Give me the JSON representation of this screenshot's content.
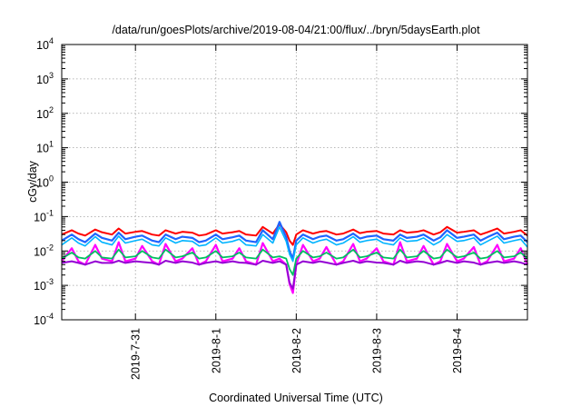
{
  "chart_data": {
    "type": "line",
    "title": "/data/run/goesPlots/archive/2019-08-04/21:00/flux/../bryn/5daysEarth.plot",
    "xlabel": "Coordinated Universal Time (UTC)",
    "ylabel": "cGy/day",
    "yscale": "log",
    "ylim": [
      0.0001,
      10000
    ],
    "xlim": [
      "2019-07-30T02:00",
      "2019-08-04T21:00"
    ],
    "y_ticks": [
      {
        "value": 0.0001,
        "base": "10",
        "exp": "-4"
      },
      {
        "value": 0.001,
        "base": "10",
        "exp": "-3"
      },
      {
        "value": 0.01,
        "base": "10",
        "exp": "-2"
      },
      {
        "value": 0.1,
        "base": "10",
        "exp": "-1"
      },
      {
        "value": 1,
        "base": "10",
        "exp": "0"
      },
      {
        "value": 10,
        "base": "10",
        "exp": "1"
      },
      {
        "value": 100,
        "base": "10",
        "exp": "2"
      },
      {
        "value": 1000,
        "base": "10",
        "exp": "3"
      },
      {
        "value": 10000,
        "base": "10",
        "exp": "4"
      }
    ],
    "x_ticks": [
      {
        "value": "2019-07-31T00:00",
        "label": "2019-7-31"
      },
      {
        "value": "2019-08-01T00:00",
        "label": "2019-8-1"
      },
      {
        "value": "2019-08-02T00:00",
        "label": "2019-8-2"
      },
      {
        "value": "2019-08-03T00:00",
        "label": "2019-8-3"
      },
      {
        "value": "2019-08-04T00:00",
        "label": "2019-8-4"
      }
    ],
    "grid": true,
    "legend": "none",
    "series": [
      {
        "color": "#ff00ff",
        "stroke_width": 2.2,
        "x": [
          "2019-07-30T02:00",
          "2019-07-30T05:00",
          "2019-07-30T07:00",
          "2019-07-30T09:00",
          "2019-07-30T12:00",
          "2019-07-30T14:00",
          "2019-07-30T17:00",
          "2019-07-30T19:00",
          "2019-07-30T21:00",
          "2019-07-31T00:00",
          "2019-07-31T02:00",
          "2019-07-31T05:00",
          "2019-07-31T07:00",
          "2019-07-31T09:00",
          "2019-07-31T12:00",
          "2019-07-31T14:00",
          "2019-07-31T17:00",
          "2019-07-31T19:00",
          "2019-07-31T21:00",
          "2019-08-01T00:00",
          "2019-08-01T02:00",
          "2019-08-01T05:00",
          "2019-08-01T07:00",
          "2019-08-01T09:00",
          "2019-08-01T12:00",
          "2019-08-01T14:00",
          "2019-08-01T17:00",
          "2019-08-01T19:00",
          "2019-08-01T21:00",
          "2019-08-01T22:00",
          "2019-08-01T23:00",
          "2019-08-02T00:00",
          "2019-08-02T02:00",
          "2019-08-02T05:00",
          "2019-08-02T07:00",
          "2019-08-02T09:00",
          "2019-08-02T12:00",
          "2019-08-02T14:00",
          "2019-08-02T17:00",
          "2019-08-02T19:00",
          "2019-08-02T21:00",
          "2019-08-03T00:00",
          "2019-08-03T02:00",
          "2019-08-03T05:00",
          "2019-08-03T07:00",
          "2019-08-03T09:00",
          "2019-08-03T12:00",
          "2019-08-03T14:00",
          "2019-08-03T17:00",
          "2019-08-03T19:00",
          "2019-08-03T21:00",
          "2019-08-04T00:00",
          "2019-08-04T02:00",
          "2019-08-04T05:00",
          "2019-08-04T07:00",
          "2019-08-04T09:00",
          "2019-08-04T12:00",
          "2019-08-04T14:00",
          "2019-08-04T17:00",
          "2019-08-04T19:00",
          "2019-08-04T21:00"
        ],
        "y": [
          0.005,
          0.012,
          0.005,
          0.004,
          0.015,
          0.006,
          0.005,
          0.018,
          0.005,
          0.006,
          0.014,
          0.005,
          0.004,
          0.016,
          0.005,
          0.006,
          0.012,
          0.004,
          0.005,
          0.015,
          0.005,
          0.006,
          0.012,
          0.005,
          0.004,
          0.017,
          0.005,
          0.006,
          0.004,
          0.0011,
          0.0006,
          0.004,
          0.015,
          0.005,
          0.006,
          0.013,
          0.004,
          0.005,
          0.016,
          0.005,
          0.006,
          0.012,
          0.005,
          0.004,
          0.018,
          0.005,
          0.006,
          0.014,
          0.004,
          0.005,
          0.016,
          0.005,
          0.006,
          0.013,
          0.004,
          0.005,
          0.015,
          0.005,
          0.006,
          0.012,
          0.004
        ]
      },
      {
        "color": "#9400d3",
        "stroke_width": 2,
        "x": [
          "2019-07-30T02:00",
          "2019-07-30T05:00",
          "2019-07-30T07:00",
          "2019-07-30T09:00",
          "2019-07-30T12:00",
          "2019-07-30T14:00",
          "2019-07-30T17:00",
          "2019-07-30T19:00",
          "2019-07-30T21:00",
          "2019-07-31T00:00",
          "2019-07-31T02:00",
          "2019-07-31T05:00",
          "2019-07-31T07:00",
          "2019-07-31T09:00",
          "2019-07-31T12:00",
          "2019-07-31T14:00",
          "2019-07-31T17:00",
          "2019-07-31T19:00",
          "2019-07-31T21:00",
          "2019-08-01T00:00",
          "2019-08-01T02:00",
          "2019-08-01T05:00",
          "2019-08-01T07:00",
          "2019-08-01T09:00",
          "2019-08-01T12:00",
          "2019-08-01T14:00",
          "2019-08-01T17:00",
          "2019-08-01T19:00",
          "2019-08-01T21:00",
          "2019-08-01T22:00",
          "2019-08-01T23:00",
          "2019-08-02T00:00",
          "2019-08-02T02:00",
          "2019-08-02T05:00",
          "2019-08-02T07:00",
          "2019-08-02T09:00",
          "2019-08-02T12:00",
          "2019-08-02T14:00",
          "2019-08-02T17:00",
          "2019-08-02T19:00",
          "2019-08-02T21:00",
          "2019-08-03T00:00",
          "2019-08-03T02:00",
          "2019-08-03T05:00",
          "2019-08-03T07:00",
          "2019-08-03T09:00",
          "2019-08-03T12:00",
          "2019-08-03T14:00",
          "2019-08-03T17:00",
          "2019-08-03T19:00",
          "2019-08-03T21:00",
          "2019-08-04T00:00",
          "2019-08-04T02:00",
          "2019-08-04T05:00",
          "2019-08-04T07:00",
          "2019-08-04T09:00",
          "2019-08-04T12:00",
          "2019-08-04T14:00",
          "2019-08-04T17:00",
          "2019-08-04T19:00",
          "2019-08-04T21:00"
        ],
        "y": [
          0.0045,
          0.005,
          0.0045,
          0.004,
          0.005,
          0.0045,
          0.0045,
          0.0052,
          0.0045,
          0.005,
          0.0048,
          0.0045,
          0.004,
          0.0052,
          0.0045,
          0.005,
          0.0046,
          0.004,
          0.0045,
          0.005,
          0.0045,
          0.005,
          0.0046,
          0.0045,
          0.004,
          0.0052,
          0.0045,
          0.005,
          0.004,
          0.0012,
          0.0008,
          0.004,
          0.005,
          0.0045,
          0.005,
          0.0046,
          0.004,
          0.0045,
          0.0052,
          0.0045,
          0.005,
          0.0046,
          0.0045,
          0.004,
          0.0052,
          0.0045,
          0.005,
          0.0048,
          0.004,
          0.0045,
          0.0052,
          0.0045,
          0.005,
          0.0046,
          0.004,
          0.0045,
          0.005,
          0.0045,
          0.005,
          0.0046,
          0.004
        ]
      },
      {
        "color": "#00c060",
        "stroke_width": 1.8,
        "x": [
          "2019-07-30T02:00",
          "2019-07-30T05:00",
          "2019-07-30T07:00",
          "2019-07-30T09:00",
          "2019-07-30T12:00",
          "2019-07-30T14:00",
          "2019-07-30T17:00",
          "2019-07-30T19:00",
          "2019-07-30T21:00",
          "2019-07-31T00:00",
          "2019-07-31T02:00",
          "2019-07-31T05:00",
          "2019-07-31T07:00",
          "2019-07-31T09:00",
          "2019-07-31T12:00",
          "2019-07-31T14:00",
          "2019-07-31T17:00",
          "2019-07-31T19:00",
          "2019-07-31T21:00",
          "2019-08-01T00:00",
          "2019-08-01T02:00",
          "2019-08-01T05:00",
          "2019-08-01T07:00",
          "2019-08-01T09:00",
          "2019-08-01T12:00",
          "2019-08-01T14:00",
          "2019-08-01T17:00",
          "2019-08-01T19:00",
          "2019-08-01T21:00",
          "2019-08-01T22:00",
          "2019-08-01T23:00",
          "2019-08-02T00:00",
          "2019-08-02T02:00",
          "2019-08-02T05:00",
          "2019-08-02T07:00",
          "2019-08-02T09:00",
          "2019-08-02T12:00",
          "2019-08-02T14:00",
          "2019-08-02T17:00",
          "2019-08-02T19:00",
          "2019-08-02T21:00",
          "2019-08-03T00:00",
          "2019-08-03T02:00",
          "2019-08-03T05:00",
          "2019-08-03T07:00",
          "2019-08-03T09:00",
          "2019-08-03T12:00",
          "2019-08-03T14:00",
          "2019-08-03T17:00",
          "2019-08-03T19:00",
          "2019-08-03T21:00",
          "2019-08-04T00:00",
          "2019-08-04T02:00",
          "2019-08-04T05:00",
          "2019-08-04T07:00",
          "2019-08-04T09:00",
          "2019-08-04T12:00",
          "2019-08-04T14:00",
          "2019-08-04T17:00",
          "2019-08-04T19:00",
          "2019-08-04T21:00"
        ],
        "y": [
          0.006,
          0.009,
          0.0065,
          0.006,
          0.01,
          0.0065,
          0.006,
          0.011,
          0.0065,
          0.007,
          0.01,
          0.0065,
          0.006,
          0.011,
          0.0065,
          0.007,
          0.009,
          0.006,
          0.0065,
          0.01,
          0.0065,
          0.007,
          0.009,
          0.0065,
          0.006,
          0.011,
          0.0065,
          0.007,
          0.006,
          0.003,
          0.002,
          0.006,
          0.01,
          0.0065,
          0.007,
          0.009,
          0.006,
          0.0065,
          0.011,
          0.0065,
          0.007,
          0.009,
          0.0065,
          0.006,
          0.011,
          0.0065,
          0.007,
          0.01,
          0.006,
          0.0065,
          0.011,
          0.0065,
          0.007,
          0.009,
          0.006,
          0.0065,
          0.01,
          0.0065,
          0.007,
          0.009,
          0.006
        ]
      },
      {
        "color": "#ff0000",
        "stroke_width": 2,
        "x": [
          "2019-07-30T02:00",
          "2019-07-30T05:00",
          "2019-07-30T07:00",
          "2019-07-30T09:00",
          "2019-07-30T12:00",
          "2019-07-30T14:00",
          "2019-07-30T17:00",
          "2019-07-30T19:00",
          "2019-07-30T21:00",
          "2019-07-31T00:00",
          "2019-07-31T02:00",
          "2019-07-31T05:00",
          "2019-07-31T07:00",
          "2019-07-31T09:00",
          "2019-07-31T12:00",
          "2019-07-31T14:00",
          "2019-07-31T17:00",
          "2019-07-31T19:00",
          "2019-07-31T21:00",
          "2019-08-01T00:00",
          "2019-08-01T02:00",
          "2019-08-01T05:00",
          "2019-08-01T07:00",
          "2019-08-01T09:00",
          "2019-08-01T12:00",
          "2019-08-01T14:00",
          "2019-08-01T17:00",
          "2019-08-01T19:00",
          "2019-08-01T21:00",
          "2019-08-01T22:00",
          "2019-08-01T23:00",
          "2019-08-02T00:00",
          "2019-08-02T02:00",
          "2019-08-02T05:00",
          "2019-08-02T07:00",
          "2019-08-02T09:00",
          "2019-08-02T12:00",
          "2019-08-02T14:00",
          "2019-08-02T17:00",
          "2019-08-02T19:00",
          "2019-08-02T21:00",
          "2019-08-03T00:00",
          "2019-08-03T02:00",
          "2019-08-03T05:00",
          "2019-08-03T07:00",
          "2019-08-03T09:00",
          "2019-08-03T12:00",
          "2019-08-03T14:00",
          "2019-08-03T17:00",
          "2019-08-03T19:00",
          "2019-08-03T21:00",
          "2019-08-04T00:00",
          "2019-08-04T02:00",
          "2019-08-04T05:00",
          "2019-08-04T07:00",
          "2019-08-04T09:00",
          "2019-08-04T12:00",
          "2019-08-04T14:00",
          "2019-08-04T17:00",
          "2019-08-04T19:00",
          "2019-08-04T21:00"
        ],
        "y": [
          0.03,
          0.04,
          0.032,
          0.028,
          0.042,
          0.035,
          0.03,
          0.045,
          0.032,
          0.036,
          0.038,
          0.03,
          0.028,
          0.04,
          0.032,
          0.036,
          0.034,
          0.028,
          0.03,
          0.04,
          0.032,
          0.035,
          0.038,
          0.03,
          0.028,
          0.05,
          0.032,
          0.06,
          0.035,
          0.02,
          0.015,
          0.03,
          0.04,
          0.032,
          0.036,
          0.038,
          0.03,
          0.032,
          0.042,
          0.033,
          0.036,
          0.038,
          0.032,
          0.03,
          0.04,
          0.034,
          0.036,
          0.04,
          0.03,
          0.035,
          0.05,
          0.034,
          0.036,
          0.04,
          0.03,
          0.035,
          0.045,
          0.032,
          0.036,
          0.04,
          0.028
        ]
      },
      {
        "color": "#1e64ff",
        "stroke_width": 2.2,
        "x": [
          "2019-07-30T02:00",
          "2019-07-30T05:00",
          "2019-07-30T07:00",
          "2019-07-30T09:00",
          "2019-07-30T12:00",
          "2019-07-30T14:00",
          "2019-07-30T17:00",
          "2019-07-30T19:00",
          "2019-07-30T21:00",
          "2019-07-31T00:00",
          "2019-07-31T02:00",
          "2019-07-31T05:00",
          "2019-07-31T07:00",
          "2019-07-31T09:00",
          "2019-07-31T12:00",
          "2019-07-31T14:00",
          "2019-07-31T17:00",
          "2019-07-31T19:00",
          "2019-07-31T21:00",
          "2019-08-01T00:00",
          "2019-08-01T02:00",
          "2019-08-01T05:00",
          "2019-08-01T07:00",
          "2019-08-01T09:00",
          "2019-08-01T12:00",
          "2019-08-01T14:00",
          "2019-08-01T17:00",
          "2019-08-01T19:00",
          "2019-08-01T21:00",
          "2019-08-01T22:00",
          "2019-08-01T23:00",
          "2019-08-02T00:00",
          "2019-08-02T02:00",
          "2019-08-02T05:00",
          "2019-08-02T07:00",
          "2019-08-02T09:00",
          "2019-08-02T12:00",
          "2019-08-02T14:00",
          "2019-08-02T17:00",
          "2019-08-02T19:00",
          "2019-08-02T21:00",
          "2019-08-03T00:00",
          "2019-08-03T02:00",
          "2019-08-03T05:00",
          "2019-08-03T07:00",
          "2019-08-03T09:00",
          "2019-08-03T12:00",
          "2019-08-03T14:00",
          "2019-08-03T17:00",
          "2019-08-03T19:00",
          "2019-08-03T21:00",
          "2019-08-04T00:00",
          "2019-08-04T02:00",
          "2019-08-04T05:00",
          "2019-08-04T07:00",
          "2019-08-04T09:00",
          "2019-08-04T12:00",
          "2019-08-04T14:00",
          "2019-08-04T17:00",
          "2019-08-04T19:00",
          "2019-08-04T21:00"
        ],
        "y": [
          0.02,
          0.03,
          0.022,
          0.018,
          0.032,
          0.024,
          0.02,
          0.034,
          0.022,
          0.026,
          0.028,
          0.02,
          0.018,
          0.03,
          0.022,
          0.026,
          0.024,
          0.018,
          0.02,
          0.03,
          0.022,
          0.025,
          0.028,
          0.02,
          0.018,
          0.04,
          0.022,
          0.07,
          0.025,
          0.01,
          0.006,
          0.02,
          0.03,
          0.022,
          0.026,
          0.028,
          0.02,
          0.022,
          0.032,
          0.023,
          0.026,
          0.028,
          0.022,
          0.02,
          0.03,
          0.024,
          0.026,
          0.03,
          0.02,
          0.025,
          0.04,
          0.024,
          0.026,
          0.03,
          0.02,
          0.025,
          0.034,
          0.022,
          0.026,
          0.028,
          0.018
        ]
      },
      {
        "color": "#00b4ff",
        "stroke_width": 1.6,
        "x": [
          "2019-07-30T02:00",
          "2019-07-30T05:00",
          "2019-07-30T07:00",
          "2019-07-30T09:00",
          "2019-07-30T12:00",
          "2019-07-30T14:00",
          "2019-07-30T17:00",
          "2019-07-30T19:00",
          "2019-07-30T21:00",
          "2019-07-31T00:00",
          "2019-07-31T02:00",
          "2019-07-31T05:00",
          "2019-07-31T07:00",
          "2019-07-31T09:00",
          "2019-07-31T12:00",
          "2019-07-31T14:00",
          "2019-07-31T17:00",
          "2019-07-31T19:00",
          "2019-07-31T21:00",
          "2019-08-01T00:00",
          "2019-08-01T02:00",
          "2019-08-01T05:00",
          "2019-08-01T07:00",
          "2019-08-01T09:00",
          "2019-08-01T12:00",
          "2019-08-01T14:00",
          "2019-08-01T17:00",
          "2019-08-01T19:00",
          "2019-08-01T21:00",
          "2019-08-01T22:00",
          "2019-08-01T23:00",
          "2019-08-02T00:00",
          "2019-08-02T02:00",
          "2019-08-02T05:00",
          "2019-08-02T07:00",
          "2019-08-02T09:00",
          "2019-08-02T12:00",
          "2019-08-02T14:00",
          "2019-08-02T17:00",
          "2019-08-02T19:00",
          "2019-08-02T21:00",
          "2019-08-03T00:00",
          "2019-08-03T02:00",
          "2019-08-03T05:00",
          "2019-08-03T07:00",
          "2019-08-03T09:00",
          "2019-08-03T12:00",
          "2019-08-03T14:00",
          "2019-08-03T17:00",
          "2019-08-03T19:00",
          "2019-08-03T21:00",
          "2019-08-04T00:00",
          "2019-08-04T02:00",
          "2019-08-04T05:00",
          "2019-08-04T07:00",
          "2019-08-04T09:00",
          "2019-08-04T12:00",
          "2019-08-04T14:00",
          "2019-08-04T17:00",
          "2019-08-04T19:00",
          "2019-08-04T21:00"
        ],
        "y": [
          0.015,
          0.024,
          0.017,
          0.014,
          0.026,
          0.018,
          0.015,
          0.027,
          0.017,
          0.02,
          0.022,
          0.015,
          0.014,
          0.024,
          0.017,
          0.02,
          0.019,
          0.014,
          0.015,
          0.024,
          0.017,
          0.019,
          0.022,
          0.015,
          0.014,
          0.03,
          0.017,
          0.05,
          0.019,
          0.008,
          0.005,
          0.015,
          0.024,
          0.017,
          0.02,
          0.022,
          0.015,
          0.017,
          0.026,
          0.018,
          0.02,
          0.022,
          0.017,
          0.015,
          0.024,
          0.019,
          0.02,
          0.024,
          0.015,
          0.019,
          0.03,
          0.019,
          0.02,
          0.024,
          0.015,
          0.019,
          0.027,
          0.017,
          0.02,
          0.022,
          0.013
        ]
      }
    ]
  }
}
